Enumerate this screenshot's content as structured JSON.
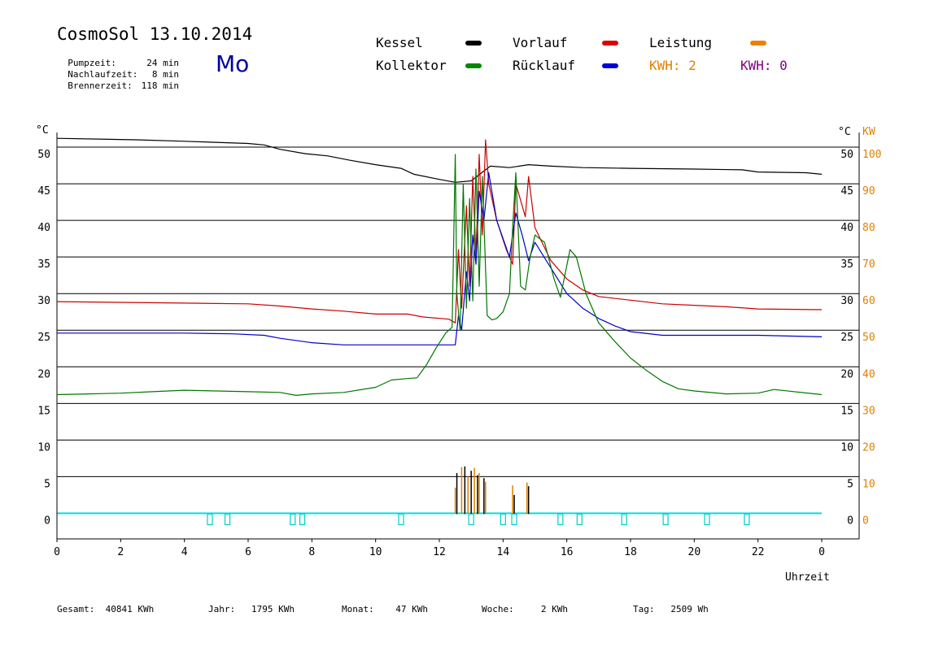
{
  "header": {
    "title": "CosmoSol 13.10.2014",
    "weekday": "Mo",
    "stats": [
      {
        "label": "Pumpzeit:",
        "value": "24 min"
      },
      {
        "label": "Nachlaufzeit:",
        "value": "8 min"
      },
      {
        "label": "Brennerzeit:",
        "value": "118 min"
      }
    ]
  },
  "legend": [
    {
      "name": "Kessel",
      "color": "#000000"
    },
    {
      "name": "Vorlauf",
      "color": "#cc0000"
    },
    {
      "name": "Leistung",
      "color": "#e08000"
    },
    {
      "name": "Kollektor",
      "color": "#007700"
    },
    {
      "name": "Rücklauf",
      "color": "#0000cc"
    }
  ],
  "kwh": [
    {
      "label": "KWH: 2",
      "color": "#e08000"
    },
    {
      "label": "KWH: 0",
      "color": "#800080"
    }
  ],
  "footer": [
    {
      "label": "Gesamt:",
      "value": "40841 KWh"
    },
    {
      "label": "Jahr:",
      "value": "1795 KWh"
    },
    {
      "label": "Monat:",
      "value": "47 KWh"
    },
    {
      "label": "Woche:",
      "value": "2 KWh"
    },
    {
      "label": "Tag:",
      "value": "2509 Wh"
    }
  ],
  "chart_data": {
    "type": "line",
    "xlabel": "Uhrzeit",
    "ylabel_left": "°C",
    "ylabel_right_a": "°C",
    "ylabel_right_b": "KW",
    "xlim": [
      0,
      24
    ],
    "ylim": [
      -3.5,
      52
    ],
    "x_ticks": [
      "0",
      "2",
      "4",
      "6",
      "8",
      "10",
      "12",
      "14",
      "16",
      "18",
      "20",
      "22",
      "0"
    ],
    "y_ticks_left": [
      "0",
      "5",
      "10",
      "15",
      "20",
      "25",
      "30",
      "35",
      "40",
      "45",
      "50"
    ],
    "y_ticks_right": [
      "0",
      "5",
      "10",
      "15",
      "20",
      "25",
      "30",
      "35",
      "40",
      "45",
      "50"
    ],
    "y_ticks_kw": [
      "0",
      "10",
      "20",
      "30",
      "40",
      "50",
      "60",
      "70",
      "80",
      "90",
      "100"
    ],
    "grid_y": [
      0,
      5,
      10,
      15,
      20,
      25,
      30,
      35,
      40,
      45,
      50
    ],
    "series": [
      {
        "name": "Kessel",
        "color": "#000000",
        "points": [
          [
            0,
            51.2
          ],
          [
            2.5,
            51
          ],
          [
            4,
            50.8
          ],
          [
            6,
            50.5
          ],
          [
            6.5,
            50.3
          ],
          [
            7,
            49.7
          ],
          [
            7.8,
            49.1
          ],
          [
            8.5,
            48.8
          ],
          [
            9.2,
            48.2
          ],
          [
            10,
            47.6
          ],
          [
            10.8,
            47.1
          ],
          [
            11.2,
            46.3
          ],
          [
            12,
            45.6
          ],
          [
            12.5,
            45.2
          ],
          [
            13,
            45.4
          ],
          [
            13.6,
            47.4
          ],
          [
            14.2,
            47.2
          ],
          [
            14.8,
            47.6
          ],
          [
            15.5,
            47.4
          ],
          [
            16.5,
            47.2
          ],
          [
            18,
            47.1
          ],
          [
            20,
            47
          ],
          [
            21.5,
            46.9
          ],
          [
            22,
            46.6
          ],
          [
            23.5,
            46.5
          ],
          [
            24,
            46.3
          ]
        ]
      },
      {
        "name": "Vorlauf",
        "color": "#cc0000",
        "points": [
          [
            0,
            28.9
          ],
          [
            2,
            28.8
          ],
          [
            4,
            28.7
          ],
          [
            6,
            28.6
          ],
          [
            7,
            28.3
          ],
          [
            8,
            27.9
          ],
          [
            9,
            27.6
          ],
          [
            10,
            27.2
          ],
          [
            11,
            27.2
          ],
          [
            11.5,
            26.8
          ],
          [
            12.3,
            26.5
          ],
          [
            12.5,
            26
          ],
          [
            12.6,
            36
          ],
          [
            12.7,
            28
          ],
          [
            12.85,
            42
          ],
          [
            12.95,
            31
          ],
          [
            13.05,
            46
          ],
          [
            13.15,
            35
          ],
          [
            13.25,
            49
          ],
          [
            13.35,
            38
          ],
          [
            13.45,
            51
          ],
          [
            13.55,
            45
          ],
          [
            13.8,
            40
          ],
          [
            14.1,
            36
          ],
          [
            14.3,
            34
          ],
          [
            14.4,
            45
          ],
          [
            14.7,
            40.5
          ],
          [
            14.8,
            46
          ],
          [
            15,
            39
          ],
          [
            15.5,
            34.5
          ],
          [
            16,
            32
          ],
          [
            16.5,
            30.5
          ],
          [
            17,
            29.6
          ],
          [
            18,
            29.1
          ],
          [
            19,
            28.6
          ],
          [
            20,
            28.4
          ],
          [
            21,
            28.2
          ],
          [
            22,
            27.9
          ],
          [
            24,
            27.8
          ]
        ]
      },
      {
        "name": "Rücklauf",
        "color": "#0000cc",
        "points": [
          [
            0,
            24.6
          ],
          [
            2,
            24.6
          ],
          [
            4,
            24.6
          ],
          [
            5.5,
            24.5
          ],
          [
            6.5,
            24.3
          ],
          [
            7,
            23.9
          ],
          [
            8,
            23.3
          ],
          [
            9,
            23
          ],
          [
            10,
            23
          ],
          [
            11,
            23
          ],
          [
            12.5,
            23
          ],
          [
            12.6,
            27
          ],
          [
            12.7,
            25
          ],
          [
            12.85,
            33
          ],
          [
            12.95,
            29
          ],
          [
            13.05,
            38
          ],
          [
            13.15,
            34
          ],
          [
            13.25,
            44
          ],
          [
            13.4,
            40
          ],
          [
            13.55,
            46.5
          ],
          [
            13.8,
            40
          ],
          [
            14.2,
            35
          ],
          [
            14.4,
            41
          ],
          [
            14.6,
            38
          ],
          [
            14.8,
            34.5
          ],
          [
            15,
            37
          ],
          [
            15.5,
            33.5
          ],
          [
            16,
            30
          ],
          [
            16.5,
            28
          ],
          [
            17,
            26.6
          ],
          [
            17.5,
            25.6
          ],
          [
            18,
            24.8
          ],
          [
            19,
            24.3
          ],
          [
            20,
            24.3
          ],
          [
            22,
            24.3
          ],
          [
            24,
            24.1
          ]
        ]
      },
      {
        "name": "Kollektor",
        "color": "#007700",
        "points": [
          [
            0,
            16.2
          ],
          [
            1,
            16.3
          ],
          [
            2,
            16.4
          ],
          [
            3,
            16.6
          ],
          [
            4,
            16.8
          ],
          [
            5,
            16.7
          ],
          [
            6,
            16.6
          ],
          [
            7,
            16.5
          ],
          [
            7.5,
            16.1
          ],
          [
            8,
            16.3
          ],
          [
            9,
            16.5
          ],
          [
            10,
            17.2
          ],
          [
            10.5,
            18.2
          ],
          [
            11,
            18.4
          ],
          [
            11.3,
            18.5
          ],
          [
            11.6,
            20.3
          ],
          [
            11.9,
            22.6
          ],
          [
            12.2,
            24.6
          ],
          [
            12.4,
            25.4
          ],
          [
            12.5,
            49
          ],
          [
            12.55,
            30
          ],
          [
            12.65,
            25
          ],
          [
            12.75,
            45
          ],
          [
            12.85,
            28
          ],
          [
            12.95,
            43
          ],
          [
            13.05,
            29
          ],
          [
            13.15,
            47
          ],
          [
            13.25,
            31
          ],
          [
            13.35,
            46
          ],
          [
            13.5,
            27
          ],
          [
            13.65,
            26.4
          ],
          [
            13.8,
            26.6
          ],
          [
            14,
            27.5
          ],
          [
            14.2,
            30
          ],
          [
            14.3,
            39
          ],
          [
            14.4,
            46.5
          ],
          [
            14.55,
            31
          ],
          [
            14.7,
            30.5
          ],
          [
            14.85,
            35
          ],
          [
            15,
            38
          ],
          [
            15.3,
            37
          ],
          [
            15.6,
            32
          ],
          [
            15.8,
            29.5
          ],
          [
            16.1,
            36
          ],
          [
            16.3,
            35
          ],
          [
            16.6,
            30
          ],
          [
            17,
            26
          ],
          [
            17.5,
            23.5
          ],
          [
            18,
            21.2
          ],
          [
            18.5,
            19.5
          ],
          [
            19,
            18
          ],
          [
            19.5,
            17
          ],
          [
            20,
            16.7
          ],
          [
            21,
            16.3
          ],
          [
            22,
            16.4
          ],
          [
            22.5,
            16.9
          ],
          [
            24,
            16.2
          ]
        ]
      }
    ],
    "leistung_spikes": [
      [
        12.5,
        -0.1,
        3.5
      ],
      [
        12.7,
        -0.1,
        6.3
      ],
      [
        12.9,
        -0.1,
        5
      ],
      [
        13.1,
        -0.1,
        6.2
      ],
      [
        13.25,
        -0.1,
        5.5
      ],
      [
        13.45,
        -0.1,
        4.3
      ],
      [
        14.3,
        -0.1,
        3.8
      ],
      [
        14.75,
        -0.1,
        4.2
      ]
    ],
    "kessel_spikes": [
      [
        12.55,
        -0.1,
        5.5
      ],
      [
        12.8,
        -0.1,
        6.4
      ],
      [
        13.0,
        -0.1,
        5.8
      ],
      [
        13.2,
        -0.1,
        5.2
      ],
      [
        13.4,
        -0.1,
        4.8
      ],
      [
        14.35,
        -0.1,
        2.5
      ],
      [
        14.8,
        -0.1,
        3.7
      ]
    ],
    "pump_marks": [
      4.8,
      5.35,
      7.4,
      7.7,
      10.8,
      13.0,
      14.0,
      14.35,
      15.8,
      16.4,
      17.8,
      19.1,
      20.4,
      21.65
    ]
  }
}
